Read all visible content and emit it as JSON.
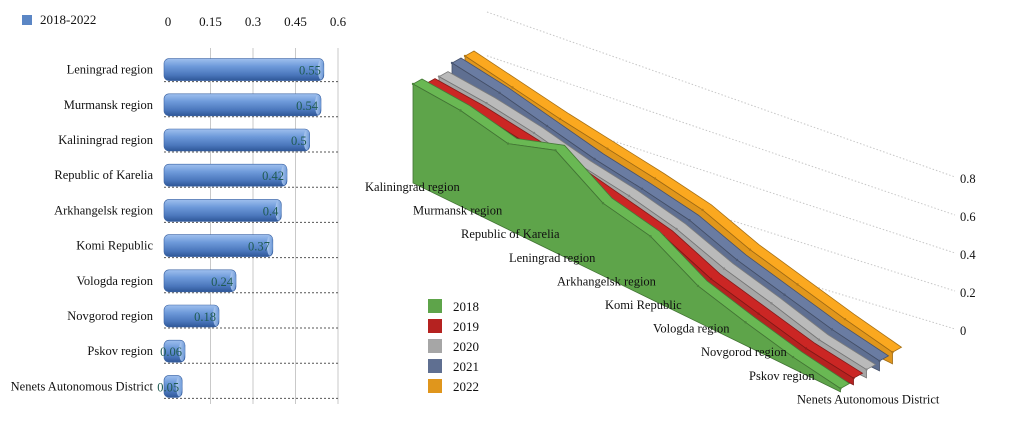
{
  "chart_data": [
    {
      "type": "bar",
      "orientation": "horizontal",
      "title": "",
      "legend": {
        "label": "2018-2022",
        "color": "#5b86c5",
        "placement": "top-left"
      },
      "xticks": [
        "0",
        "0.15",
        "0.3",
        "0.45",
        "0.6"
      ],
      "xlim": [
        0,
        0.6
      ],
      "categories": [
        "Leningrad region",
        "Murmansk region",
        "Kaliningrad region",
        "Republic of Karelia",
        "Arkhangelsk region",
        "Komi Republic",
        "Vologda region",
        "Novgorod region",
        "Pskov region",
        "Nenets Autonomous District"
      ],
      "values": [
        0.55,
        0.54,
        0.5,
        0.42,
        0.4,
        0.37,
        0.24,
        0.18,
        0.06,
        0.05
      ],
      "value_labels": [
        "0.55",
        "0.54",
        "0.5",
        "0.42",
        "0.4",
        "0.37",
        "0.24",
        "0.18",
        "0.06",
        "0.05"
      ],
      "grid": true
    },
    {
      "type": "area",
      "style": "3d-ribbon",
      "categories": [
        "Kaliningrad region",
        "Murmansk region",
        "Republic of Karelia",
        "Leningrad region",
        "Arkhangelsk region",
        "Komi Republic",
        "Vologda region",
        "Novgorod region",
        "Pskov region",
        "Nenets Autonomous District"
      ],
      "zticks": [
        "0",
        "0.2",
        "0.4",
        "0.6",
        "0.8"
      ],
      "zlim": [
        0,
        0.8
      ],
      "series": [
        {
          "name": "2018",
          "color": "#5ea44a",
          "values": [
            0.6,
            0.58,
            0.52,
            0.62,
            0.44,
            0.38,
            0.22,
            0.14,
            0.07,
            0.02
          ]
        },
        {
          "name": "2019",
          "color": "#b52220",
          "values": [
            0.56,
            0.54,
            0.5,
            0.46,
            0.4,
            0.34,
            0.22,
            0.15,
            0.08,
            0.04
          ]
        },
        {
          "name": "2020",
          "color": "#a6a6a6",
          "values": [
            0.56,
            0.54,
            0.5,
            0.44,
            0.4,
            0.34,
            0.24,
            0.17,
            0.09,
            0.05
          ]
        },
        {
          "name": "2021",
          "color": "#5f6f91",
          "values": [
            0.6,
            0.56,
            0.5,
            0.44,
            0.4,
            0.35,
            0.25,
            0.18,
            0.11,
            0.06
          ]
        },
        {
          "name": "2022",
          "color": "#e0961c",
          "values": [
            0.6,
            0.55,
            0.5,
            0.46,
            0.42,
            0.37,
            0.27,
            0.2,
            0.13,
            0.07
          ]
        }
      ],
      "legend": {
        "placement": "center"
      }
    }
  ]
}
